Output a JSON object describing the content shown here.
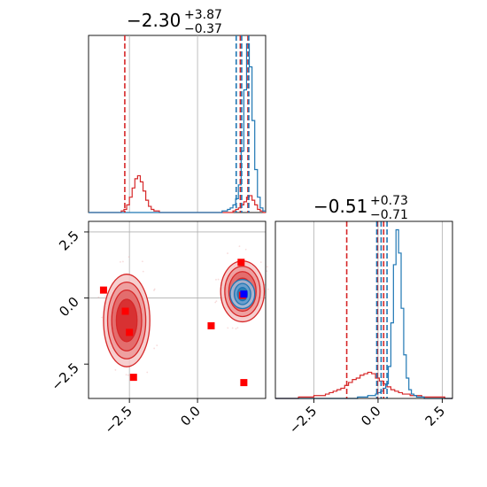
{
  "colors": {
    "red": "#d62728",
    "blue": "#1f77b4",
    "truth": "#ff0000",
    "truth2": "#0000ff",
    "grid": "#b0b0b0"
  },
  "chart_data": [
    {
      "type": "histogram",
      "panel": "param1",
      "title_value": "−2.30",
      "title_upper": "+3.87",
      "title_lower": "−0.37",
      "xlim": [
        -4,
        2.5
      ],
      "red_quantiles": [
        -2.67,
        1.57,
        1.85
      ],
      "blue_quantiles": [
        1.42,
        1.62,
        1.88
      ],
      "grid_x": [
        -2.5,
        0.0
      ],
      "red_hist": {
        "bin_start": -4,
        "bin_width": 0.1,
        "counts": [
          0,
          0,
          0,
          0,
          0,
          0,
          0,
          0,
          0,
          0,
          0,
          0,
          1,
          2,
          5,
          10,
          16,
          22,
          24,
          20,
          14,
          8,
          4,
          2,
          1,
          1,
          0,
          0,
          0,
          0,
          0,
          0,
          0,
          0,
          0,
          0,
          0,
          0,
          0,
          0,
          0,
          0,
          0,
          0,
          0,
          0,
          0,
          0,
          0,
          0,
          0,
          0,
          0,
          1,
          2,
          3,
          5,
          7,
          10,
          11,
          8,
          5,
          2,
          1,
          0
        ]
      },
      "blue_hist": {
        "bin_start": -4,
        "bin_width": 0.1,
        "counts": [
          0,
          0,
          0,
          0,
          0,
          0,
          0,
          0,
          0,
          0,
          0,
          0,
          0,
          0,
          0,
          0,
          0,
          0,
          0,
          0,
          0,
          0,
          0,
          0,
          0,
          0,
          0,
          0,
          0,
          0,
          0,
          0,
          0,
          0,
          0,
          0,
          0,
          0,
          0,
          0,
          0,
          0,
          0,
          0,
          0,
          0,
          0,
          0,
          0,
          1,
          1,
          2,
          3,
          5,
          9,
          18,
          40,
          80,
          110,
          95,
          60,
          28,
          10,
          3,
          1
        ]
      }
    },
    {
      "type": "histogram",
      "panel": "param2",
      "title_value": "−0.51",
      "title_upper": "+0.73",
      "title_lower": "−0.71",
      "xlim": [
        -4.0,
        2.9
      ],
      "xticks": [
        -2.5,
        0.0,
        2.5
      ],
      "xtick_labels": [
        "−2.5",
        "0.0",
        "2.5"
      ],
      "grid_x": [
        -2.5,
        0.0,
        2.5
      ],
      "red_quantiles": [
        -1.22,
        -0.02,
        0.22
      ],
      "blue_quantiles": [
        -0.05,
        0.12,
        0.35
      ],
      "red_hist": {
        "bin_start": -4,
        "bin_width": 0.15,
        "counts": [
          0,
          0,
          0,
          0,
          0,
          0,
          1,
          1,
          1,
          1,
          2,
          2,
          2,
          3,
          4,
          5,
          6,
          7,
          9,
          11,
          13,
          14,
          16,
          17,
          18,
          17,
          14,
          12,
          10,
          8,
          6,
          5,
          4,
          3,
          3,
          2,
          2,
          2,
          1,
          1,
          1,
          1,
          1,
          1,
          0,
          0
        ]
      },
      "blue_hist": {
        "bin_start": -4,
        "bin_width": 0.1,
        "counts": [
          0,
          0,
          0,
          0,
          0,
          0,
          0,
          0,
          0,
          0,
          0,
          0,
          0,
          0,
          0,
          0,
          0,
          0,
          0,
          0,
          0,
          0,
          0,
          0,
          0,
          0,
          0,
          0,
          0,
          0,
          0,
          0,
          1,
          1,
          1,
          1,
          2,
          2,
          2,
          3,
          4,
          5,
          7,
          10,
          22,
          52,
          92,
          116,
          100,
          62,
          30,
          14,
          6,
          3,
          2,
          1,
          1,
          1,
          0,
          0,
          0,
          0,
          0,
          0,
          0,
          0,
          0,
          0,
          0
        ]
      }
    },
    {
      "type": "scatter-contour",
      "panel": "joint",
      "xlim": [
        -4.0,
        2.5
      ],
      "ylim": [
        -3.8,
        2.9
      ],
      "xticks": [
        -2.5,
        0.0
      ],
      "xtick_labels": [
        "−2.5",
        "0.0"
      ],
      "yticks": [
        2.5,
        0.0,
        -2.5
      ],
      "ytick_labels": [
        "2.5",
        "0.0",
        "−2.5"
      ],
      "grid_x": [
        -2.5,
        0.0
      ],
      "grid_y": [
        2.5,
        0.0
      ],
      "red_markers": [
        [
          -3.45,
          0.3
        ],
        [
          -2.65,
          -0.5
        ],
        [
          -2.5,
          -1.3
        ],
        [
          -2.35,
          -3.0
        ],
        [
          0.5,
          -1.05
        ],
        [
          1.6,
          1.35
        ],
        [
          1.7,
          -3.2
        ],
        [
          1.65,
          0.1
        ]
      ],
      "blue_markers": [
        [
          1.7,
          0.15
        ]
      ],
      "red_cluster_left": {
        "center": [
          -2.6,
          -0.85
        ],
        "radii": [
          [
            0.85,
            1.75
          ],
          [
            0.7,
            1.45
          ],
          [
            0.55,
            1.15
          ],
          [
            0.38,
            0.8
          ]
        ]
      },
      "red_cluster_right": {
        "center": [
          1.65,
          0.25
        ],
        "radii": [
          [
            0.8,
            1.15
          ],
          [
            0.65,
            0.95
          ],
          [
            0.5,
            0.75
          ],
          [
            0.35,
            0.5
          ]
        ]
      },
      "blue_cluster": {
        "center": [
          1.65,
          0.15
        ],
        "radii": [
          [
            0.45,
            0.55
          ],
          [
            0.3,
            0.4
          ],
          [
            0.18,
            0.25
          ]
        ]
      }
    }
  ]
}
